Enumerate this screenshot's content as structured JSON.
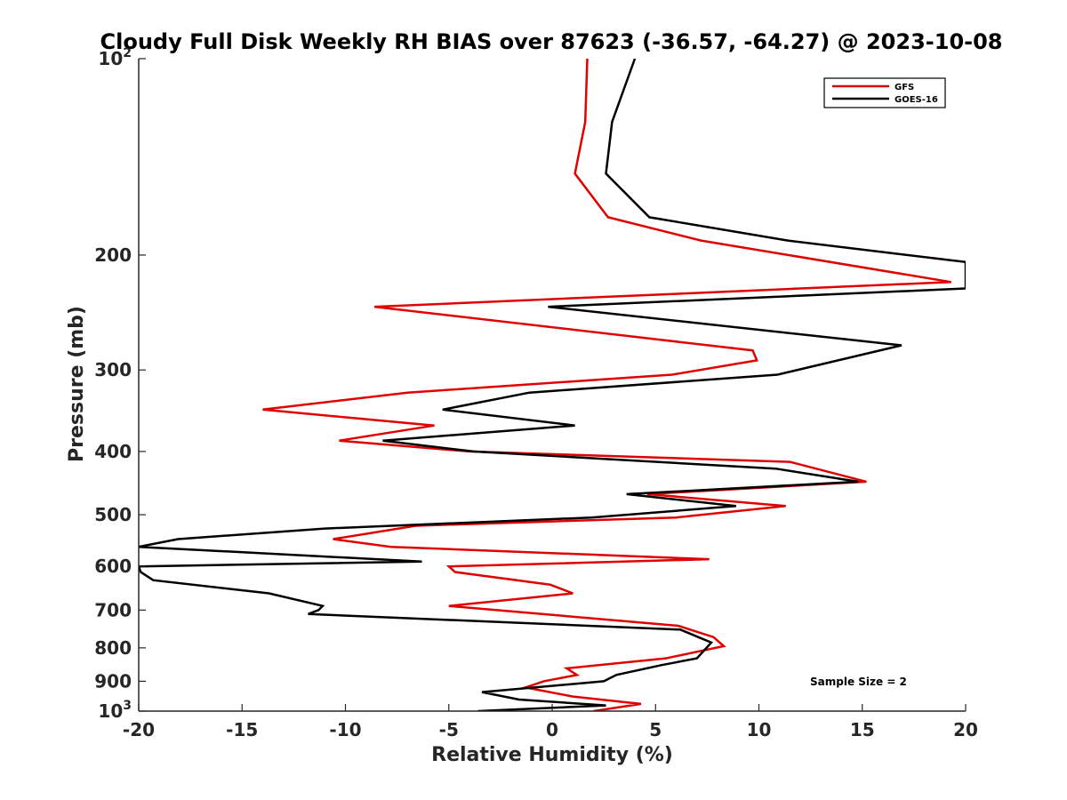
{
  "chart_data": {
    "type": "line",
    "title": "Cloudy Full Disk Weekly RH BIAS over 87623 (-36.57, -64.27) @ 2023-10-08",
    "xlabel": "Relative Humidity (%)",
    "ylabel": "Pressure (mb)",
    "xlim": [
      -20,
      20
    ],
    "ylim": [
      100,
      1000
    ],
    "yscale": "log",
    "y_reversed": true,
    "grid": false,
    "legend_placement": "top-right",
    "x_ticks": [
      -20,
      -15,
      -10,
      -5,
      0,
      5,
      10,
      15,
      20
    ],
    "x_tick_labels": [
      "-20",
      "-15",
      "-10",
      "-5",
      "0",
      "5",
      "10",
      "15",
      "20"
    ],
    "y_ticks": [
      {
        "value": 100,
        "base": "10",
        "exp": "2"
      },
      {
        "value": 200,
        "label": "200"
      },
      {
        "value": 300,
        "label": "300"
      },
      {
        "value": 400,
        "label": "400"
      },
      {
        "value": 500,
        "label": "500"
      },
      {
        "value": 600,
        "label": "600"
      },
      {
        "value": 700,
        "label": "700"
      },
      {
        "value": 800,
        "label": "800"
      },
      {
        "value": 900,
        "label": "900"
      },
      {
        "value": 1000,
        "base": "10",
        "exp": "3"
      }
    ],
    "annotation": "Sample Size = 2",
    "series": [
      {
        "name": "GFS",
        "color": "#e00000",
        "points": [
          [
            1.7,
            100
          ],
          [
            1.6,
            125
          ],
          [
            1.1,
            150
          ],
          [
            2.7,
            175
          ],
          [
            7.2,
            190
          ],
          [
            19.3,
            220
          ],
          [
            -8.6,
            240
          ],
          [
            9.7,
            280
          ],
          [
            9.9,
            290
          ],
          [
            5.8,
            305
          ],
          [
            -7.0,
            325
          ],
          [
            -14.0,
            345
          ],
          [
            -5.7,
            365
          ],
          [
            -10.3,
            385
          ],
          [
            -4.0,
            400
          ],
          [
            11.5,
            415
          ],
          [
            15.2,
            445
          ],
          [
            4.6,
            465
          ],
          [
            11.3,
            485
          ],
          [
            6.0,
            505
          ],
          [
            -6.6,
            520
          ],
          [
            -10.6,
            545
          ],
          [
            -7.8,
            560
          ],
          [
            7.6,
            585
          ],
          [
            -5.0,
            600
          ],
          [
            -4.7,
            612
          ],
          [
            -0.1,
            640
          ],
          [
            1.0,
            660
          ],
          [
            -5.0,
            690
          ],
          [
            6.1,
            740
          ],
          [
            7.8,
            770
          ],
          [
            8.3,
            795
          ],
          [
            5.5,
            830
          ],
          [
            0.7,
            860
          ],
          [
            1.2,
            880
          ],
          [
            -0.4,
            900
          ],
          [
            -1.3,
            920
          ],
          [
            1.0,
            950
          ],
          [
            4.3,
            975
          ],
          [
            2.0,
            1000
          ]
        ]
      },
      {
        "name": "GOES-16",
        "color": "#000000",
        "points": [
          [
            4.0,
            100
          ],
          [
            2.9,
            125
          ],
          [
            2.6,
            150
          ],
          [
            4.7,
            175
          ],
          [
            11.4,
            190
          ],
          [
            20.0,
            205
          ],
          [
            20.0,
            225
          ],
          [
            -0.2,
            240
          ],
          [
            16.9,
            275
          ],
          [
            10.9,
            305
          ],
          [
            -1.1,
            325
          ],
          [
            -5.3,
            345
          ],
          [
            1.1,
            365
          ],
          [
            -8.2,
            385
          ],
          [
            -3.8,
            400
          ],
          [
            10.8,
            425
          ],
          [
            14.8,
            445
          ],
          [
            3.6,
            465
          ],
          [
            8.9,
            485
          ],
          [
            1.9,
            505
          ],
          [
            -11.0,
            525
          ],
          [
            -18.1,
            545
          ],
          [
            -20.0,
            560
          ],
          [
            -6.3,
            590
          ],
          [
            -20.0,
            600
          ],
          [
            -19.9,
            612
          ],
          [
            -19.3,
            630
          ],
          [
            -13.7,
            660
          ],
          [
            -11.1,
            690
          ],
          [
            -11.3,
            700
          ],
          [
            -11.8,
            710
          ],
          [
            6.2,
            750
          ],
          [
            7.7,
            785
          ],
          [
            7.0,
            830
          ],
          [
            5.3,
            850
          ],
          [
            3.1,
            880
          ],
          [
            2.5,
            900
          ],
          [
            -3.4,
            935
          ],
          [
            -1.6,
            960
          ],
          [
            2.6,
            980
          ],
          [
            -3.6,
            1000
          ]
        ]
      }
    ]
  }
}
